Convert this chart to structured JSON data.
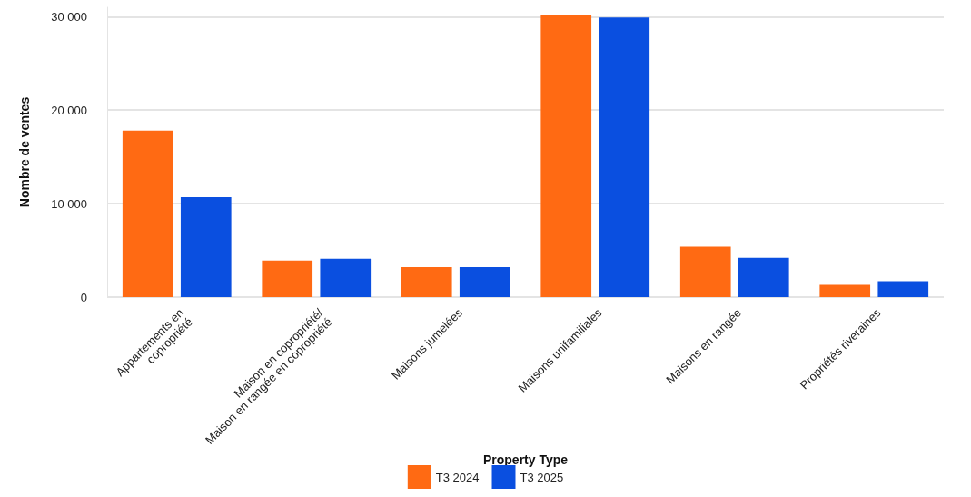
{
  "chart_data": {
    "type": "bar",
    "xlabel": "Property Type",
    "ylabel": "Nombre de ventes",
    "categories": [
      "Appartements en\ncopropriété",
      "Maison en copropriété/\nMaison en rangée en copropriété",
      "Maisons jumelées",
      "Maisons unifamiliales",
      "Maisons en rangée",
      "Propriétés riveraines"
    ],
    "series": [
      {
        "name": "T3 2024",
        "color": "#ff6a13",
        "values": [
          17800,
          3900,
          3200,
          30200,
          5400,
          1300
        ]
      },
      {
        "name": "T3 2025",
        "color": "#0a4fe0",
        "values": [
          10700,
          4100,
          3200,
          29900,
          4200,
          1700
        ]
      }
    ],
    "ylim": [
      0,
      31000
    ],
    "yticks": [
      {
        "value": 0,
        "label": "0"
      },
      {
        "value": 10000,
        "label": "10 000"
      },
      {
        "value": 20000,
        "label": "20 000"
      },
      {
        "value": 30000,
        "label": "30 000"
      }
    ],
    "grid": "y",
    "legend": "bottom"
  }
}
